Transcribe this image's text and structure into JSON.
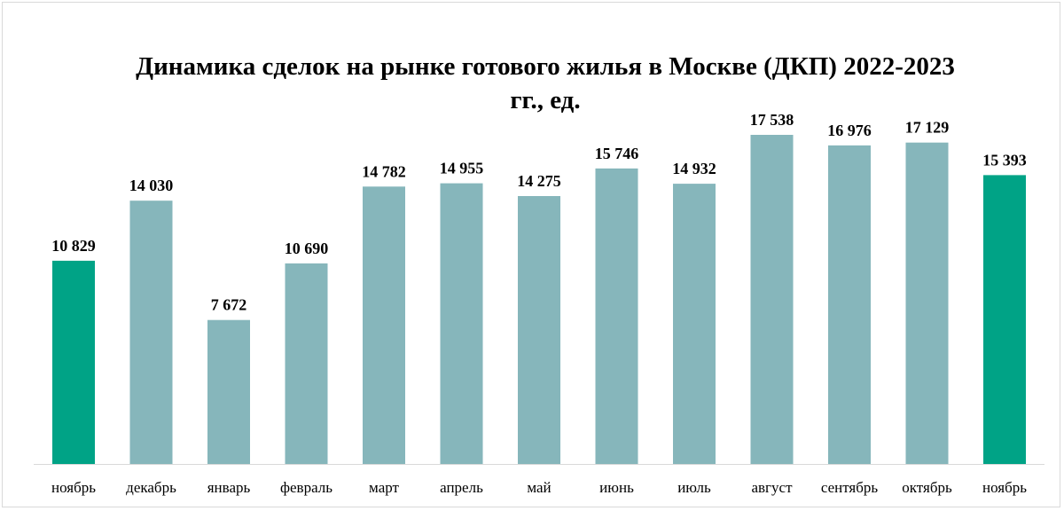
{
  "chart_data": {
    "type": "bar",
    "title": "Динамика сделок на рынке готового жилья в Москве (ДКП) 2022-2023 гг., ед.",
    "title_lines": [
      "Динамика сделок на рынке готового жилья в Москве (ДКП) 2022-2023",
      "гг., ед."
    ],
    "categories": [
      "ноябрь",
      "декабрь",
      "январь",
      "февраль",
      "март",
      "апрель",
      "май",
      "июнь",
      "июль",
      "август",
      "сентябрь",
      "октябрь",
      "ноябрь"
    ],
    "values": [
      10829,
      14030,
      7672,
      10690,
      14782,
      14955,
      14275,
      15746,
      14932,
      17538,
      16976,
      17129,
      15393
    ],
    "value_labels": [
      "10 829",
      "14 030",
      "7 672",
      "10 690",
      "14 782",
      "14 955",
      "14 275",
      "15 746",
      "14 932",
      "17 538",
      "16 976",
      "17 129",
      "15 393"
    ],
    "highlighted": [
      true,
      false,
      false,
      false,
      false,
      false,
      false,
      false,
      false,
      false,
      false,
      false,
      true
    ],
    "colors": {
      "bar": "#86b6bb",
      "highlight": "#00a386",
      "axis": "#d9d9d9"
    },
    "ylim": [
      0,
      20000
    ],
    "xlabel": "",
    "ylabel": "",
    "grid": false,
    "legend": "none"
  }
}
